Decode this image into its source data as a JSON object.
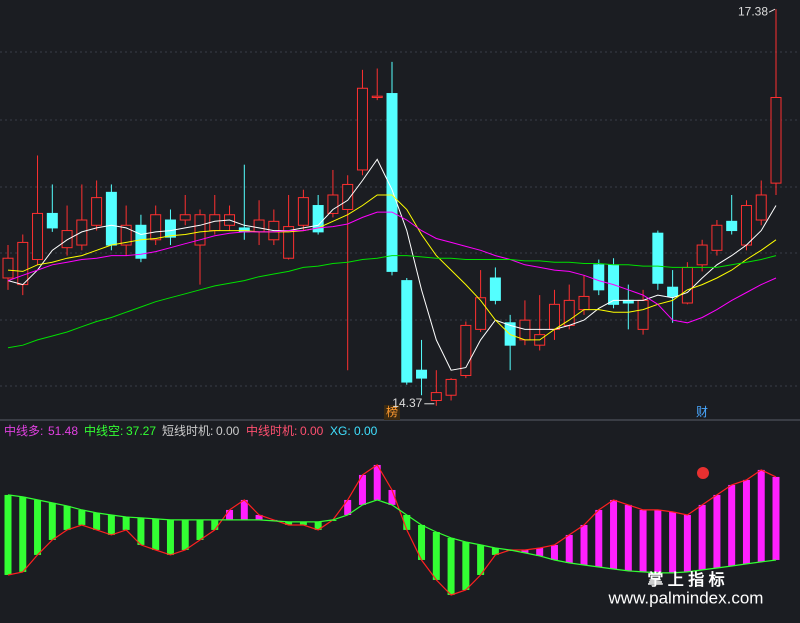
{
  "chart_data": [
    {
      "type": "candlestick",
      "up_color": "#ff3030",
      "down_color": "#54ffff",
      "ylim": [
        14.3,
        17.45
      ],
      "open": [
        15.34,
        15.29,
        15.48,
        15.83,
        15.57,
        15.59,
        15.74,
        15.99,
        15.59,
        15.74,
        15.63,
        15.78,
        15.78,
        15.59,
        15.7,
        15.74,
        15.72,
        15.69,
        15.63,
        15.49,
        15.74,
        15.89,
        15.83,
        15.86,
        16.16,
        16.71,
        16.74,
        15.32,
        14.64,
        14.41,
        14.45,
        14.6,
        14.95,
        15.34,
        15.0,
        14.87,
        14.83,
        14.95,
        14.98,
        15.1,
        15.44,
        15.44,
        15.17,
        14.95,
        15.68,
        15.27,
        15.15,
        15.44,
        15.55,
        15.77,
        15.59,
        15.78,
        16.06
      ],
      "close": [
        15.49,
        15.61,
        15.83,
        15.72,
        15.7,
        15.78,
        15.95,
        15.59,
        15.74,
        15.49,
        15.82,
        15.65,
        15.82,
        15.82,
        15.82,
        15.82,
        15.69,
        15.78,
        15.77,
        15.73,
        15.95,
        15.69,
        15.97,
        16.05,
        16.78,
        16.72,
        15.39,
        14.55,
        14.58,
        14.47,
        14.57,
        14.98,
        15.19,
        15.17,
        14.83,
        15.02,
        14.91,
        15.14,
        15.17,
        15.2,
        15.25,
        15.14,
        15.15,
        15.17,
        15.3,
        15.2,
        15.42,
        15.59,
        15.74,
        15.7,
        15.89,
        15.97,
        16.71
      ],
      "high": [
        15.59,
        15.67,
        16.27,
        16.05,
        15.89,
        16.05,
        16.08,
        16.05,
        15.89,
        15.82,
        15.89,
        15.86,
        15.97,
        15.86,
        15.97,
        15.89,
        16.2,
        15.93,
        15.86,
        15.97,
        16.01,
        15.97,
        16.16,
        16.12,
        16.92,
        16.93,
        16.98,
        15.34,
        14.87,
        14.64,
        14.58,
        15.01,
        15.4,
        15.42,
        15.06,
        15.17,
        15.21,
        15.25,
        15.29,
        15.36,
        15.48,
        15.49,
        15.29,
        15.25,
        15.7,
        15.4,
        15.46,
        15.63,
        15.78,
        15.97,
        15.93,
        16.08,
        17.38
      ],
      "low": [
        15.25,
        15.21,
        15.44,
        15.69,
        15.51,
        15.55,
        15.7,
        15.55,
        15.51,
        15.46,
        15.59,
        15.59,
        15.74,
        15.29,
        15.67,
        15.7,
        15.63,
        15.59,
        15.59,
        15.48,
        15.7,
        15.67,
        15.8,
        14.64,
        16.12,
        16.69,
        15.36,
        14.53,
        14.45,
        14.37,
        14.41,
        14.58,
        14.93,
        15.14,
        14.64,
        14.83,
        14.79,
        14.87,
        14.95,
        15.06,
        15.21,
        15.11,
        14.95,
        14.91,
        15.25,
        15.0,
        15.14,
        15.39,
        15.51,
        15.67,
        15.55,
        15.74,
        15.97
      ],
      "lines": [
        {
          "color": "#ffffff",
          "values": [
            15.32,
            15.29,
            15.4,
            15.55,
            15.63,
            15.69,
            15.72,
            15.74,
            15.72,
            15.67,
            15.69,
            15.7,
            15.72,
            15.74,
            15.77,
            15.78,
            15.74,
            15.72,
            15.7,
            15.7,
            15.72,
            15.74,
            15.86,
            15.93,
            16.08,
            16.24,
            16.01,
            15.7,
            15.25,
            14.87,
            14.64,
            14.66,
            14.87,
            15.02,
            14.98,
            14.95,
            14.95,
            14.95,
            14.98,
            15.02,
            15.11,
            15.17,
            15.17,
            15.17,
            15.21,
            15.19,
            15.23,
            15.34,
            15.44,
            15.51,
            15.59,
            15.7,
            15.89
          ]
        },
        {
          "color": "#ffff00",
          "values": [
            15.4,
            15.39,
            15.44,
            15.46,
            15.49,
            15.51,
            15.55,
            15.59,
            15.61,
            15.63,
            15.64,
            15.66,
            15.67,
            15.69,
            15.7,
            15.7,
            15.7,
            15.69,
            15.69,
            15.69,
            15.7,
            15.72,
            15.77,
            15.82,
            15.89,
            15.97,
            15.97,
            15.86,
            15.67,
            15.51,
            15.4,
            15.29,
            15.17,
            15.02,
            14.91,
            14.87,
            14.87,
            14.95,
            15.02,
            15.1,
            15.1,
            15.08,
            15.08,
            15.1,
            15.14,
            15.17,
            15.25,
            15.29,
            15.34,
            15.4,
            15.48,
            15.55,
            15.63
          ]
        },
        {
          "color": "#ff00ff",
          "values": [
            15.32,
            15.36,
            15.4,
            15.44,
            15.46,
            15.48,
            15.49,
            15.51,
            15.51,
            15.52,
            15.54,
            15.57,
            15.6,
            15.63,
            15.66,
            15.68,
            15.69,
            15.69,
            15.69,
            15.7,
            15.7,
            15.72,
            15.73,
            15.75,
            15.8,
            15.84,
            15.84,
            15.78,
            15.7,
            15.64,
            15.61,
            15.58,
            15.55,
            15.51,
            15.48,
            15.44,
            15.42,
            15.4,
            15.39,
            15.36,
            15.32,
            15.29,
            15.25,
            15.21,
            15.14,
            15.02,
            15.0,
            15.04,
            15.1,
            15.17,
            15.23,
            15.29,
            15.34
          ]
        },
        {
          "color": "#00e000",
          "values": [
            14.81,
            14.83,
            14.87,
            14.9,
            14.93,
            14.97,
            15.01,
            15.04,
            15.08,
            15.12,
            15.16,
            15.19,
            15.22,
            15.25,
            15.28,
            15.3,
            15.32,
            15.35,
            15.37,
            15.39,
            15.42,
            15.43,
            15.45,
            15.46,
            15.48,
            15.49,
            15.51,
            15.51,
            15.5,
            15.49,
            15.49,
            15.48,
            15.48,
            15.48,
            15.48,
            15.47,
            15.47,
            15.46,
            15.46,
            15.45,
            15.45,
            15.44,
            15.44,
            15.43,
            15.43,
            15.42,
            15.42,
            15.42,
            15.42,
            15.44,
            15.46,
            15.48,
            15.51
          ]
        }
      ],
      "annotations": [
        "榜",
        "财"
      ]
    },
    {
      "type": "indicator",
      "ylim": [
        27.85,
        57.8
      ],
      "up_color": "#ff20ff",
      "down_color": "#33ff33",
      "series": [
        {
          "name": "中线多:",
          "color": "#ff2020",
          "values": [
            34.7,
            35.22,
            38.13,
            40.69,
            42.41,
            43.26,
            42.41,
            41.55,
            42.41,
            39.84,
            38.98,
            38.13,
            38.98,
            40.69,
            42.41,
            45.83,
            47.54,
            44.97,
            44.12,
            43.26,
            43.26,
            42.41,
            44.12,
            47.54,
            51.82,
            53.53,
            49.25,
            42.41,
            37.27,
            33.85,
            31.28,
            32.13,
            34.7,
            38.13,
            38.98,
            38.98,
            39.32,
            39.84,
            41.55,
            43.26,
            45.83,
            47.54,
            46.69,
            45.83,
            45.83,
            45.49,
            44.97,
            46.69,
            48.4,
            50.11,
            50.97,
            52.68,
            51.48
          ]
        },
        {
          "name": "中线空:",
          "color": "#33ff33",
          "values": [
            48.4,
            48.06,
            47.54,
            47.03,
            46.52,
            45.83,
            45.32,
            44.97,
            44.63,
            44.46,
            44.29,
            44.12,
            44.12,
            44.12,
            44.12,
            44.12,
            44.12,
            44.12,
            43.95,
            43.78,
            43.78,
            43.78,
            44.12,
            44.97,
            46.69,
            47.54,
            46.69,
            44.97,
            43.26,
            42.06,
            41.04,
            40.35,
            39.84,
            39.32,
            38.98,
            38.47,
            37.96,
            37.27,
            36.76,
            36.41,
            36.07,
            35.73,
            35.39,
            35.22,
            35.05,
            35.05,
            35.22,
            35.56,
            35.9,
            36.24,
            36.59,
            36.93,
            37.27
          ]
        }
      ],
      "indicators": [
        {
          "name": "短线时机:",
          "value": 0,
          "value_label": "0.00"
        },
        {
          "name": "中线时机:",
          "value": 0,
          "value_label": "0.00"
        },
        {
          "name": "XG:",
          "value": 0,
          "value_label": "0.00"
        }
      ]
    }
  ],
  "watermark": {
    "title": "掌 上 指 标",
    "url": "www.palmindex.com"
  }
}
